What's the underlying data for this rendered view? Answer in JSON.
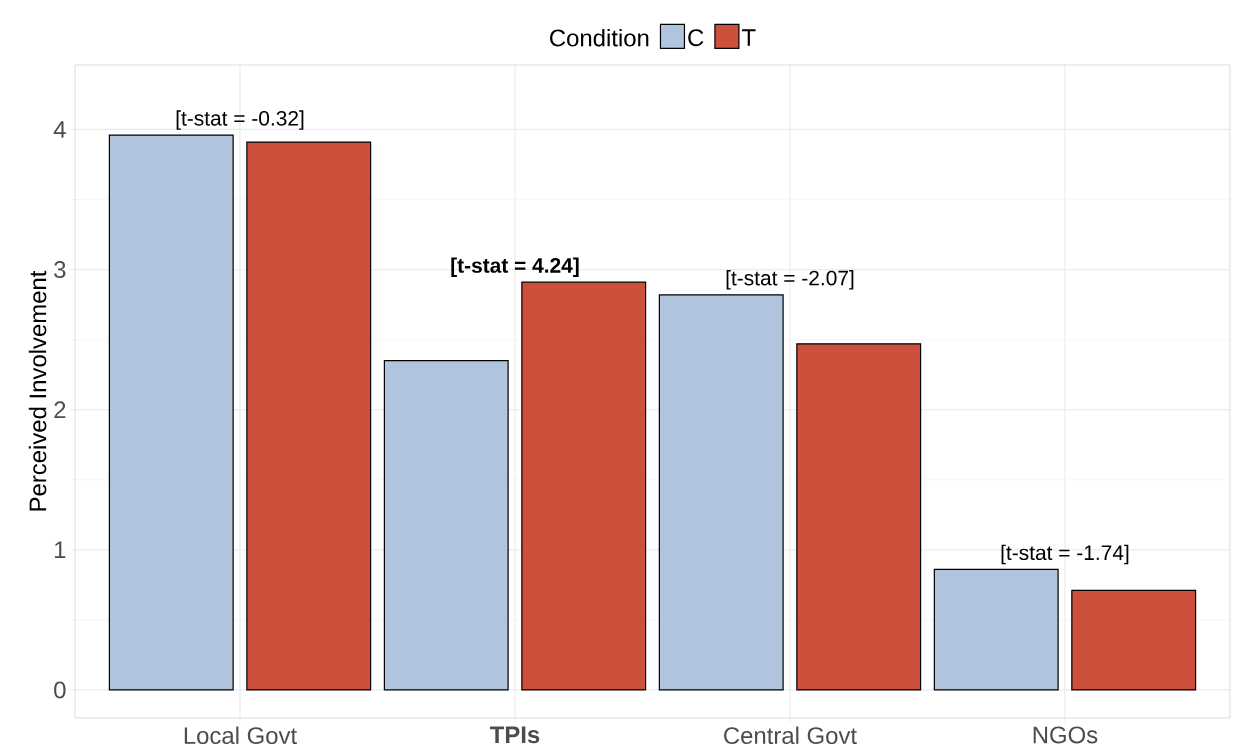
{
  "chart_data": {
    "type": "bar",
    "ylabel": "Perceived Involvement",
    "legend_title": "Condition",
    "categories": [
      "Local Govt",
      "**TPIs**",
      "Central Govt",
      "NGOs"
    ],
    "series": [
      {
        "name": "C",
        "color": "#b0c4de",
        "values": [
          3.96,
          2.35,
          2.82,
          0.86
        ]
      },
      {
        "name": "T",
        "color": "#cd503c",
        "values": [
          3.91,
          2.91,
          2.47,
          0.71
        ]
      }
    ],
    "ylim": [
      -0.2,
      4.46
    ],
    "yticks": [
      0,
      1,
      2,
      3,
      4
    ],
    "grid": true,
    "legend": "top",
    "annotations": [
      "[t-stat = -0.32]",
      "**[t-stat = 4.24]**",
      "[t-stat = -2.07]",
      "[t-stat = -1.74]"
    ]
  }
}
